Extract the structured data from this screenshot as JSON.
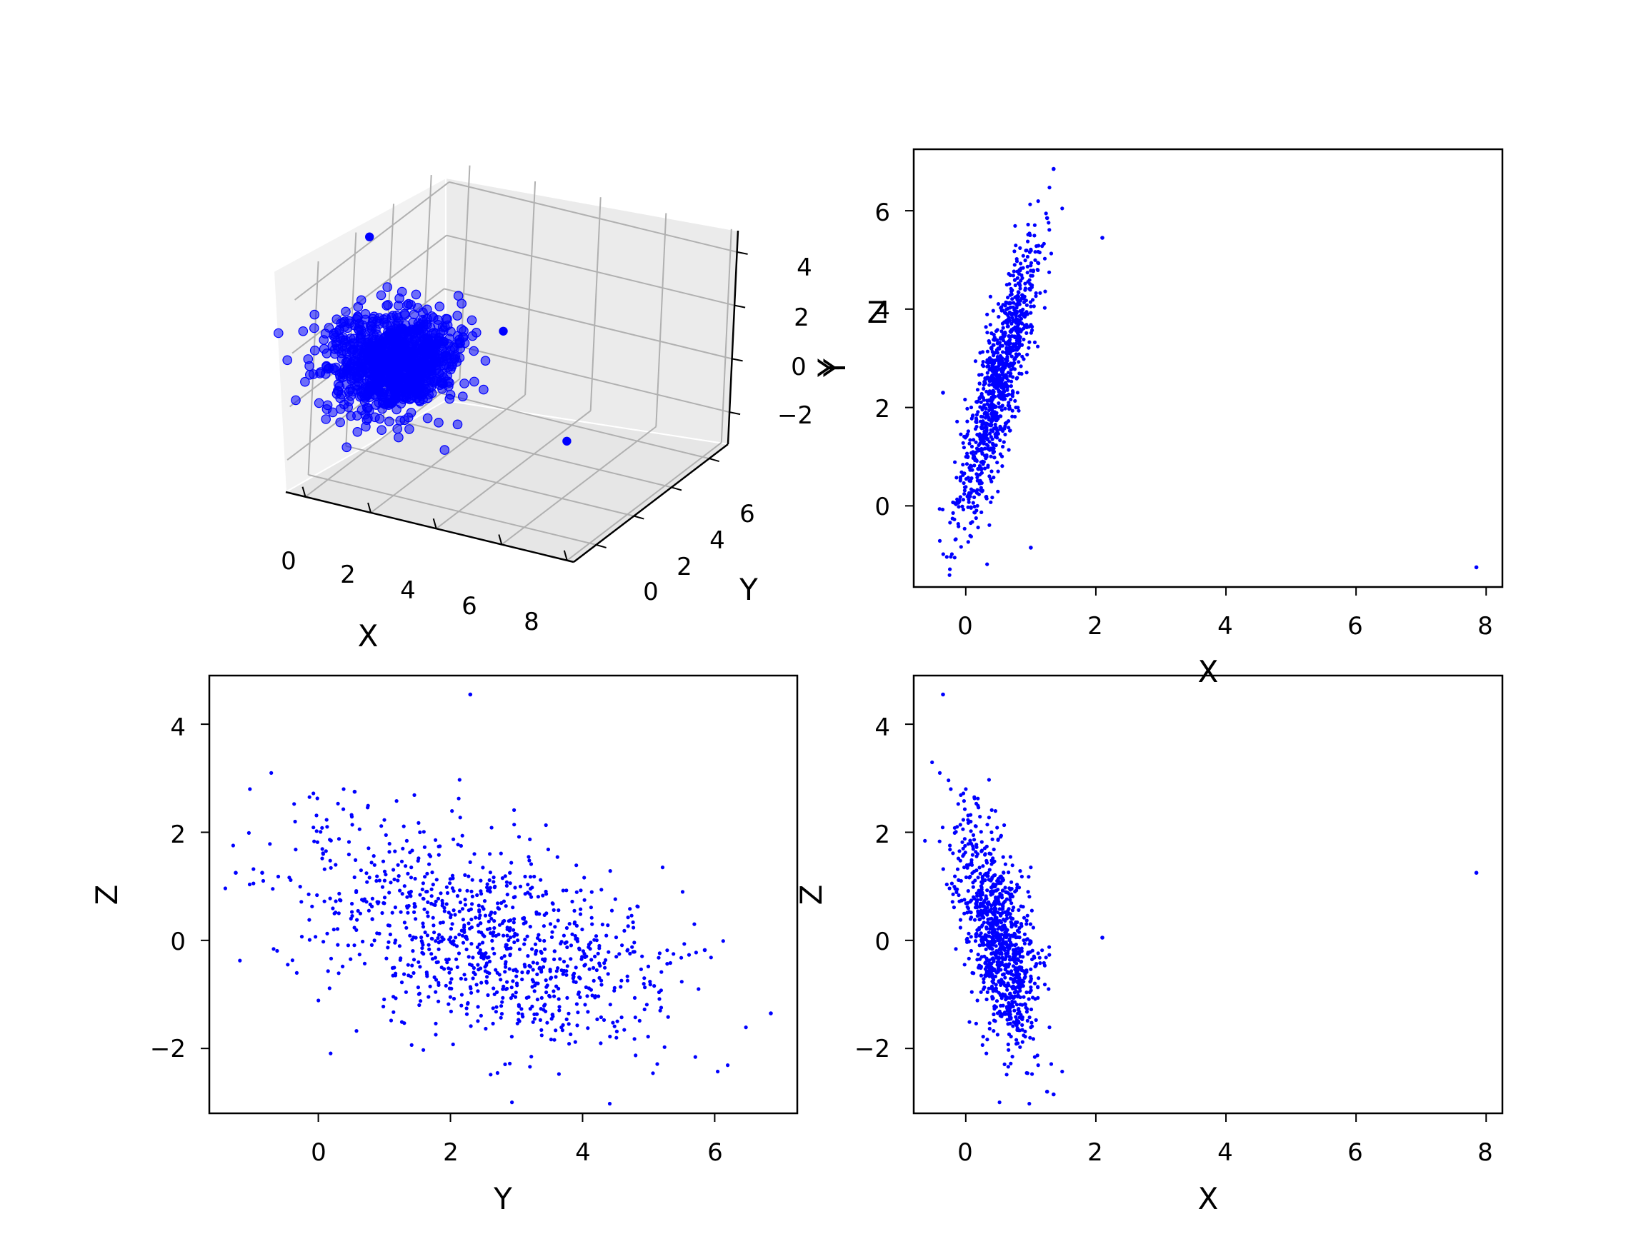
{
  "colors": {
    "points": "#0000ff",
    "axes": "#000000",
    "pane": "#f2f2f2",
    "grid": "#b0b0b0"
  },
  "chart_data": [
    {
      "id": "xyz-3d",
      "type": "scatter",
      "projection": "3d",
      "xlabel": "X",
      "ylabel": "Y",
      "zlabel": "Z",
      "xlim": [
        -0.6,
        8.2
      ],
      "ylim": [
        -1.2,
        7.0
      ],
      "zlim": [
        -3.2,
        4.8
      ],
      "xticks": [
        "0",
        "2",
        "4",
        "6",
        "8"
      ],
      "yticks": [
        "0",
        "2",
        "4",
        "6"
      ],
      "zticks": [
        "−2",
        "0",
        "2",
        "4"
      ],
      "grid": true,
      "outliers": [
        {
          "x": 7.85,
          "y": -1.25,
          "z": 1.25
        },
        {
          "x": -0.35,
          "y": 2.3,
          "z": 4.55
        },
        {
          "x": 2.1,
          "y": 5.45,
          "z": 0.05
        }
      ]
    },
    {
      "id": "x-vs-y",
      "type": "scatter",
      "xlabel": "X",
      "ylabel": "Y",
      "xlim": [
        -0.8,
        8.25
      ],
      "ylim": [
        -1.65,
        7.25
      ],
      "xticks": [
        "0",
        "2",
        "4",
        "6",
        "8"
      ],
      "yticks": [
        "0",
        "2",
        "4",
        "6"
      ],
      "distribution": {
        "x_mean": 0.5,
        "x_sd": 0.3,
        "y_mean": 2.5,
        "y_sd": 1.3,
        "n": 1000
      },
      "outliers": [
        {
          "x": 7.85,
          "y": -1.25
        },
        {
          "x": 2.1,
          "y": 5.45
        },
        {
          "x": 1.35,
          "y": 6.85
        },
        {
          "x": 1.25,
          "y": 5.85
        },
        {
          "x": -0.35,
          "y": 2.3
        },
        {
          "x": 1.0,
          "y": -0.85
        }
      ]
    },
    {
      "id": "y-vs-z",
      "type": "scatter",
      "xlabel": "Y",
      "ylabel": "Z",
      "xlim": [
        -1.65,
        7.25
      ],
      "ylim": [
        -3.2,
        4.9
      ],
      "xticks": [
        "0",
        "2",
        "4",
        "6"
      ],
      "yticks": [
        "−2",
        "0",
        "2",
        "4"
      ],
      "distribution": {
        "x_mean": 2.5,
        "x_sd": 1.3,
        "y_mean": 0.0,
        "y_sd": 1.0,
        "n": 1000
      },
      "outliers": [
        {
          "x": 2.3,
          "y": 4.55
        },
        {
          "x": 6.85,
          "y": -1.35
        },
        {
          "x": -1.25,
          "y": 1.25
        },
        {
          "x": 5.85,
          "y": -0.18
        },
        {
          "x": -0.85,
          "y": 1.25
        },
        {
          "x": 0.55,
          "y": 2.75
        }
      ]
    },
    {
      "id": "x-vs-z",
      "type": "scatter",
      "xlabel": "X",
      "ylabel": "Z",
      "xlim": [
        -0.8,
        8.25
      ],
      "ylim": [
        -3.2,
        4.9
      ],
      "xticks": [
        "0",
        "2",
        "4",
        "6",
        "8"
      ],
      "yticks": [
        "−2",
        "0",
        "2",
        "4"
      ],
      "distribution": {
        "x_mean": 0.5,
        "x_sd": 0.3,
        "y_mean": 0.0,
        "y_sd": 1.0,
        "n": 1000
      },
      "outliers": [
        {
          "x": 7.85,
          "y": 1.25
        },
        {
          "x": -0.35,
          "y": 4.55
        },
        {
          "x": 2.1,
          "y": 0.05
        },
        {
          "x": 1.35,
          "y": -2.85
        },
        {
          "x": 1.25,
          "y": -2.8
        }
      ]
    }
  ]
}
